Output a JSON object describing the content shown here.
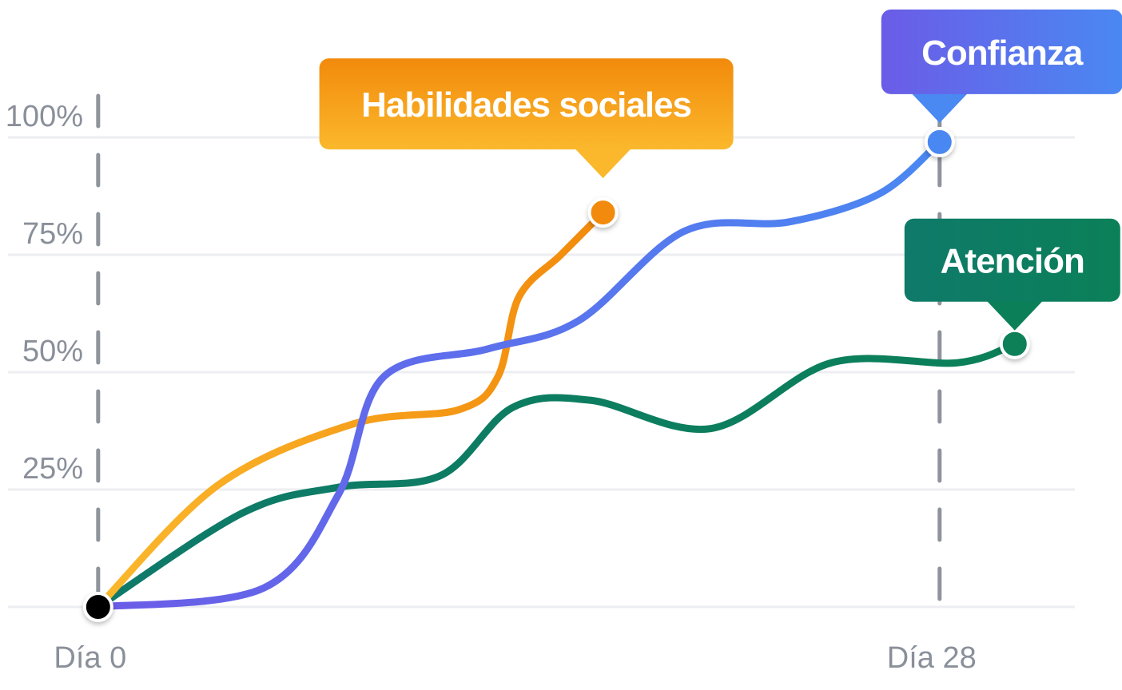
{
  "chart_data": {
    "type": "line",
    "xlim": [
      -3,
      32.5
    ],
    "ylim": [
      0,
      100
    ],
    "xticks": [
      {
        "value": 0,
        "label": "Día 0"
      },
      {
        "value": 28,
        "label": "Día 28"
      }
    ],
    "yticks": [
      {
        "value": 25,
        "label": "25%"
      },
      {
        "value": 50,
        "label": "50%"
      },
      {
        "value": 75,
        "label": "75%"
      },
      {
        "value": 100,
        "label": "100%"
      }
    ],
    "grid": true,
    "series": [
      {
        "name": "Confianza",
        "color": [
          "#6b5ce7",
          "#4a88f2"
        ],
        "x": [
          0,
          5.5,
          8,
          9.5,
          13,
          16,
          19.5,
          23,
          26,
          28
        ],
        "values": [
          0,
          4,
          24,
          49,
          55,
          61,
          80,
          82,
          88,
          99
        ]
      },
      {
        "name": "Habilidades sociales",
        "color": [
          "#fbb82c",
          "#f28a0c"
        ],
        "x": [
          0,
          4,
          8.5,
          12,
          13.3,
          14,
          15.4,
          16.8
        ],
        "values": [
          0,
          26,
          39,
          42,
          49,
          66,
          75,
          84
        ]
      },
      {
        "name": "Atención",
        "color": [
          "#0f7a6a",
          "#0b8058"
        ],
        "x": [
          0,
          4.8,
          8,
          11.4,
          13.8,
          16.4,
          20.4,
          24.4,
          28.6,
          30.5
        ],
        "values": [
          0,
          20,
          25.5,
          28,
          42.5,
          44,
          38,
          52,
          52,
          56
        ]
      }
    ]
  }
}
